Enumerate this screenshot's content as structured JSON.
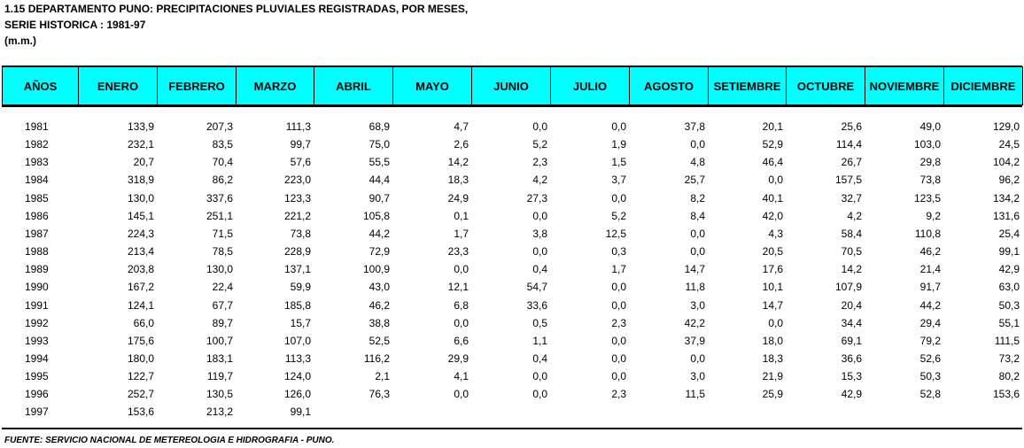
{
  "header": {
    "title": "1.15  DEPARTAMENTO PUNO: PRECIPITACIONES PLUVIALES REGISTRADAS, POR MESES,",
    "subtitle": "SERIE HISTORICA : 1981-97",
    "unit": "(m.m.)"
  },
  "table": {
    "columns": [
      "AÑOS",
      "ENERO",
      "FEBRERO",
      "MARZO",
      "ABRIL",
      "MAYO",
      "JUNIO",
      "JULIO",
      "AGOSTO",
      "SETIEMBRE",
      "OCTUBRE",
      "NOVIEMBRE",
      "DICIEMBRE"
    ],
    "rows": [
      [
        "1981",
        "133,9",
        "207,3",
        "111,3",
        "68,9",
        "4,7",
        "0,0",
        "0,0",
        "37,8",
        "20,1",
        "25,6",
        "49,0",
        "129,0"
      ],
      [
        "1982",
        "232,1",
        "83,5",
        "99,7",
        "75,0",
        "2,6",
        "5,2",
        "1,9",
        "0,0",
        "52,9",
        "114,4",
        "103,0",
        "24,5"
      ],
      [
        "1983",
        "20,7",
        "70,4",
        "57,6",
        "55,5",
        "14,2",
        "2,3",
        "1,5",
        "4,8",
        "46,4",
        "26,7",
        "29,8",
        "104,2"
      ],
      [
        "1984",
        "318,9",
        "86,2",
        "223,0",
        "44,4",
        "18,3",
        "4,2",
        "3,7",
        "25,7",
        "0,0",
        "157,5",
        "73,8",
        "96,2"
      ],
      [
        "1985",
        "130,0",
        "337,6",
        "123,3",
        "90,7",
        "24,9",
        "27,3",
        "0,0",
        "8,2",
        "40,1",
        "32,7",
        "123,5",
        "134,2"
      ],
      [
        "1986",
        "145,1",
        "251,1",
        "221,2",
        "105,8",
        "0,1",
        "0,0",
        "5,2",
        "8,4",
        "42,0",
        "4,2",
        "9,2",
        "131,6"
      ],
      [
        "1987",
        "224,3",
        "71,5",
        "73,8",
        "44,2",
        "1,7",
        "3,8",
        "12,5",
        "0,0",
        "4,3",
        "58,4",
        "110,8",
        "25,4"
      ],
      [
        "1988",
        "213,4",
        "78,5",
        "228,9",
        "72,9",
        "23,3",
        "0,0",
        "0,3",
        "0,0",
        "20,5",
        "70,5",
        "46,2",
        "99,1"
      ],
      [
        "1989",
        "203,8",
        "130,0",
        "137,1",
        "100,9",
        "0,0",
        "0,4",
        "1,7",
        "14,7",
        "17,6",
        "14,2",
        "21,4",
        "42,9"
      ],
      [
        "1990",
        "167,2",
        "22,4",
        "59,9",
        "43,0",
        "12,1",
        "54,7",
        "0,0",
        "11,8",
        "10,1",
        "107,9",
        "91,7",
        "63,0"
      ],
      [
        "1991",
        "124,1",
        "67,7",
        "185,8",
        "46,2",
        "6,8",
        "33,6",
        "0,0",
        "3,0",
        "14,7",
        "20,4",
        "44,2",
        "50,3"
      ],
      [
        "1992",
        "66,0",
        "89,7",
        "15,7",
        "38,8",
        "0,0",
        "0,5",
        "2,3",
        "42,2",
        "0,0",
        "34,4",
        "29,4",
        "55,1"
      ],
      [
        "1993",
        "175,6",
        "100,7",
        "107,0",
        "52,5",
        "6,6",
        "1,1",
        "0,0",
        "37,9",
        "18,0",
        "69,1",
        "79,2",
        "111,5"
      ],
      [
        "1994",
        "180,0",
        "183,1",
        "113,3",
        "116,2",
        "29,9",
        "0,4",
        "0,0",
        "0,0",
        "18,3",
        "36,6",
        "52,6",
        "73,2"
      ],
      [
        "1995",
        "122,7",
        "119,7",
        "124,0",
        "2,1",
        "4,1",
        "0,0",
        "0,0",
        "3,0",
        "21,9",
        "15,3",
        "50,3",
        "80,2"
      ],
      [
        "1996",
        "252,7",
        "130,5",
        "126,0",
        "76,3",
        "0,0",
        "0,0",
        "2,3",
        "11,5",
        "25,9",
        "42,9",
        "52,8",
        "153,6"
      ],
      [
        "1997",
        "153,6",
        "213,2",
        "99,1"
      ]
    ]
  },
  "footer": {
    "source": "FUENTE: SERVICIO NACIONAL DE METEREOLOGIA E HIDROGRAFIA - PUNO."
  }
}
